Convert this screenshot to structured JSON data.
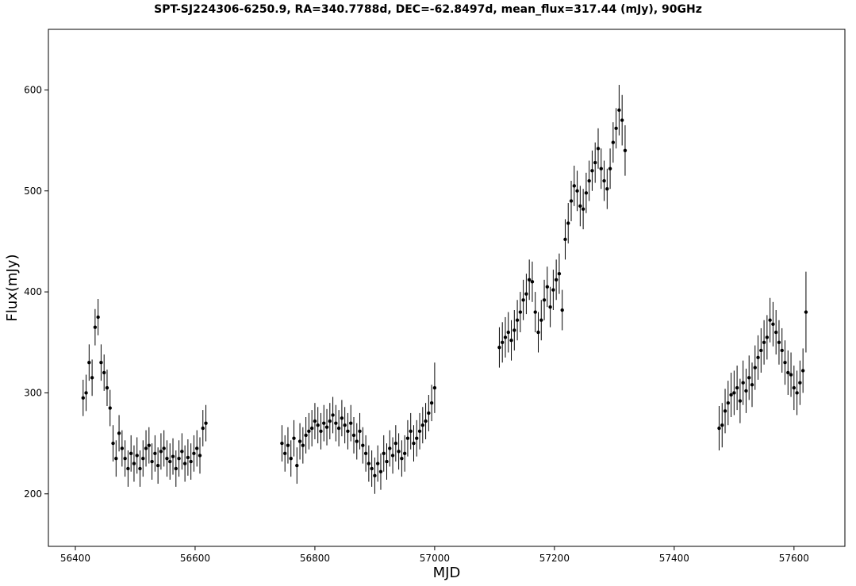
{
  "chart_data": {
    "type": "scatter",
    "title": "SPT-SJ224306-6250.9, RA=340.7788d, DEC=-62.8497d, mean_flux=317.44 (mJy), 90GHz",
    "xlabel": "MJD",
    "ylabel": "Flux(mJy)",
    "xlim": [
      56355,
      57685
    ],
    "ylim": [
      148,
      660
    ],
    "x_ticks": [
      56400,
      56600,
      56800,
      57000,
      57200,
      57400,
      57600
    ],
    "y_ticks": [
      200,
      300,
      400,
      500,
      600
    ],
    "grid": false,
    "legend": "none",
    "marker_color": "#000000",
    "errorbars": true,
    "series": [
      {
        "x": [
          56413,
          56418,
          56423,
          56428,
          56433,
          56438,
          56443,
          56448,
          56453,
          56458,
          56463,
          56468,
          56473,
          56478,
          56483,
          56488,
          56493,
          56498,
          56503,
          56508,
          56513,
          56518,
          56523,
          56528,
          56533,
          56538,
          56543,
          56548,
          56553,
          56558,
          56563,
          56568,
          56573,
          56578,
          56583,
          56588,
          56593,
          56598,
          56603,
          56608,
          56613,
          56618,
          56745,
          56750,
          56755,
          56760,
          56765,
          56770,
          56775,
          56780,
          56785,
          56790,
          56795,
          56800,
          56805,
          56810,
          56815,
          56820,
          56825,
          56830,
          56835,
          56840,
          56845,
          56850,
          56855,
          56860,
          56865,
          56870,
          56875,
          56880,
          56885,
          56890,
          56895,
          56900,
          56905,
          56910,
          56915,
          56920,
          56925,
          56930,
          56935,
          56940,
          56945,
          56950,
          56955,
          56960,
          56965,
          56970,
          56975,
          56980,
          56985,
          56990,
          56995,
          57000,
          57108,
          57113,
          57118,
          57123,
          57128,
          57133,
          57138,
          57143,
          57148,
          57153,
          57158,
          57163,
          57168,
          57173,
          57178,
          57183,
          57188,
          57193,
          57198,
          57203,
          57208,
          57213,
          57218,
          57223,
          57228,
          57233,
          57238,
          57243,
          57248,
          57253,
          57258,
          57263,
          57268,
          57273,
          57278,
          57283,
          57288,
          57293,
          57298,
          57303,
          57308,
          57313,
          57318,
          57475,
          57480,
          57485,
          57490,
          57495,
          57500,
          57505,
          57510,
          57515,
          57520,
          57525,
          57530,
          57535,
          57540,
          57545,
          57550,
          57555,
          57560,
          57565,
          57570,
          57575,
          57580,
          57585,
          57590,
          57595,
          57600,
          57605,
          57610,
          57615,
          57620
        ],
        "y": [
          295,
          300,
          330,
          315,
          365,
          375,
          330,
          320,
          305,
          285,
          250,
          235,
          260,
          245,
          235,
          225,
          240,
          230,
          238,
          225,
          235,
          245,
          248,
          232,
          240,
          228,
          242,
          245,
          235,
          232,
          237,
          225,
          235,
          242,
          230,
          236,
          232,
          240,
          245,
          238,
          265,
          270,
          250,
          240,
          248,
          235,
          255,
          228,
          252,
          248,
          258,
          262,
          265,
          272,
          268,
          262,
          270,
          266,
          272,
          278,
          270,
          265,
          275,
          268,
          262,
          270,
          258,
          252,
          262,
          248,
          240,
          230,
          225,
          218,
          230,
          222,
          240,
          232,
          245,
          238,
          250,
          242,
          235,
          240,
          255,
          262,
          250,
          255,
          262,
          268,
          272,
          280,
          290,
          305,
          345,
          350,
          355,
          360,
          352,
          362,
          372,
          380,
          392,
          398,
          412,
          410,
          380,
          360,
          372,
          392,
          405,
          385,
          402,
          412,
          418,
          382,
          452,
          468,
          490,
          505,
          500,
          485,
          482,
          498,
          510,
          520,
          528,
          542,
          522,
          510,
          502,
          522,
          548,
          562,
          580,
          570,
          540,
          265,
          268,
          282,
          290,
          298,
          300,
          305,
          292,
          310,
          302,
          315,
          308,
          325,
          335,
          342,
          350,
          355,
          372,
          368,
          360,
          350,
          342,
          330,
          320,
          318,
          305,
          300,
          310,
          322,
          380
        ],
        "err": [
          18,
          18,
          18,
          18,
          18,
          18,
          18,
          18,
          18,
          18,
          18,
          18,
          18,
          18,
          18,
          18,
          18,
          18,
          18,
          18,
          18,
          18,
          18,
          18,
          18,
          18,
          18,
          18,
          18,
          18,
          18,
          18,
          18,
          18,
          18,
          18,
          18,
          18,
          18,
          18,
          18,
          18,
          18,
          18,
          18,
          18,
          18,
          18,
          18,
          18,
          18,
          18,
          18,
          18,
          18,
          18,
          18,
          18,
          18,
          18,
          18,
          18,
          18,
          18,
          18,
          18,
          18,
          18,
          18,
          18,
          18,
          18,
          18,
          18,
          18,
          18,
          18,
          18,
          18,
          18,
          18,
          18,
          18,
          18,
          18,
          18,
          18,
          18,
          18,
          18,
          18,
          18,
          18,
          25,
          20,
          20,
          20,
          20,
          20,
          20,
          20,
          20,
          20,
          20,
          20,
          20,
          20,
          20,
          20,
          20,
          20,
          20,
          20,
          20,
          20,
          20,
          20,
          20,
          20,
          20,
          20,
          20,
          20,
          20,
          20,
          20,
          20,
          20,
          20,
          20,
          20,
          20,
          20,
          20,
          25,
          25,
          25,
          22,
          22,
          22,
          22,
          22,
          22,
          22,
          22,
          22,
          22,
          22,
          22,
          22,
          22,
          22,
          22,
          22,
          22,
          22,
          22,
          22,
          22,
          22,
          22,
          22,
          22,
          22,
          22,
          22,
          40
        ]
      }
    ]
  }
}
